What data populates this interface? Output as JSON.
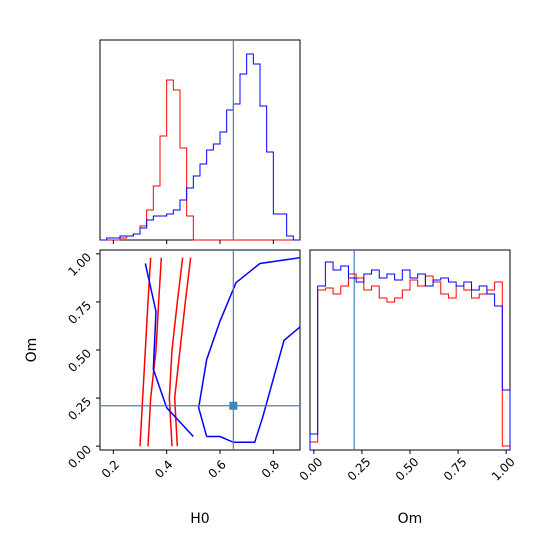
{
  "chart_data": {
    "type": "corner",
    "parameters": [
      "H0",
      "Om"
    ],
    "truth": {
      "H0": 0.65,
      "Om": 0.21
    },
    "truth_color": "#4682b4",
    "series_colors": [
      "#ff0000",
      "#0000ff"
    ],
    "panels": [
      {
        "id": "hist-h0",
        "type": "histogram",
        "param": "H0",
        "xlim": [
          0.15,
          0.9
        ],
        "ylim": [
          0,
          1.0
        ],
        "bins": [
          0.15,
          0.175,
          0.2,
          0.225,
          0.25,
          0.275,
          0.3,
          0.325,
          0.35,
          0.375,
          0.4,
          0.425,
          0.45,
          0.475,
          0.5,
          0.525,
          0.55,
          0.575,
          0.6,
          0.625,
          0.65,
          0.675,
          0.7,
          0.725,
          0.75,
          0.775,
          0.8,
          0.825,
          0.85,
          0.875,
          0.9
        ],
        "series": [
          {
            "color": "#ff0000",
            "values": [
              0,
              0,
              0,
              0.01,
              0.02,
              0.03,
              0.07,
              0.15,
              0.27,
              0.52,
              0.8,
              0.75,
              0.46,
              0.12,
              0,
              0,
              0,
              0,
              0,
              0,
              0,
              0,
              0,
              0,
              0,
              0,
              0,
              0,
              0,
              0
            ]
          },
          {
            "color": "#0000ff",
            "values": [
              0,
              0.01,
              0.01,
              0.02,
              0.02,
              0.03,
              0.06,
              0.1,
              0.12,
              0.12,
              0.13,
              0.15,
              0.2,
              0.26,
              0.32,
              0.38,
              0.45,
              0.48,
              0.54,
              0.65,
              0.68,
              0.83,
              0.93,
              0.88,
              0.67,
              0.44,
              0.13,
              0.13,
              0.02,
              0
            ]
          }
        ]
      },
      {
        "id": "contour-h0-om",
        "type": "contour",
        "x_param": "H0",
        "y_param": "Om",
        "xlim": [
          0.15,
          0.9
        ],
        "ylim": [
          -0.02,
          1.02
        ],
        "series": [
          {
            "color": "#ff0000",
            "contours": [
              [
                [
                  0.3,
                  0.0
                ],
                [
                  0.31,
                  0.25
                ],
                [
                  0.32,
                  0.5
                ],
                [
                  0.33,
                  0.75
                ],
                [
                  0.34,
                  0.98
                ]
              ],
              [
                [
                  0.33,
                  0.0
                ],
                [
                  0.34,
                  0.25
                ],
                [
                  0.36,
                  0.5
                ],
                [
                  0.37,
                  0.75
                ],
                [
                  0.38,
                  0.98
                ]
              ],
              [
                [
                  0.42,
                  0.0
                ],
                [
                  0.41,
                  0.25
                ],
                [
                  0.42,
                  0.5
                ],
                [
                  0.44,
                  0.75
                ],
                [
                  0.46,
                  0.98
                ]
              ],
              [
                [
                  0.44,
                  0.0
                ],
                [
                  0.43,
                  0.25
                ],
                [
                  0.45,
                  0.5
                ],
                [
                  0.47,
                  0.75
                ],
                [
                  0.49,
                  0.98
                ]
              ]
            ]
          },
          {
            "color": "#0000ff",
            "contours": [
              [
                [
                  0.55,
                  0.05
                ],
                [
                  0.52,
                  0.2
                ],
                [
                  0.55,
                  0.45
                ],
                [
                  0.6,
                  0.65
                ],
                [
                  0.66,
                  0.85
                ],
                [
                  0.75,
                  0.95
                ],
                [
                  0.85,
                  0.97
                ],
                [
                  0.9,
                  0.98
                ]
              ],
              [
                [
                  0.9,
                  0.62
                ],
                [
                  0.84,
                  0.55
                ],
                [
                  0.8,
                  0.35
                ],
                [
                  0.76,
                  0.15
                ],
                [
                  0.73,
                  0.02
                ],
                [
                  0.65,
                  0.02
                ],
                [
                  0.6,
                  0.05
                ],
                [
                  0.55,
                  0.05
                ]
              ],
              [
                [
                  0.32,
                  0.95
                ],
                [
                  0.36,
                  0.7
                ],
                [
                  0.35,
                  0.4
                ],
                [
                  0.4,
                  0.2
                ],
                [
                  0.5,
                  0.05
                ]
              ]
            ]
          }
        ]
      },
      {
        "id": "hist-om",
        "type": "histogram",
        "param": "Om",
        "xlim": [
          -0.02,
          1.02
        ],
        "ylim": [
          0,
          1.0
        ],
        "bins": [
          -0.02,
          0.02,
          0.06,
          0.1,
          0.14,
          0.18,
          0.22,
          0.26,
          0.3,
          0.34,
          0.38,
          0.42,
          0.46,
          0.5,
          0.54,
          0.58,
          0.62,
          0.66,
          0.7,
          0.74,
          0.78,
          0.82,
          0.86,
          0.9,
          0.94,
          0.98,
          1.02
        ],
        "series": [
          {
            "color": "#ff0000",
            "values": [
              0.04,
              0.8,
              0.81,
              0.78,
              0.82,
              0.88,
              0.86,
              0.8,
              0.82,
              0.76,
              0.74,
              0.76,
              0.8,
              0.85,
              0.82,
              0.87,
              0.84,
              0.78,
              0.76,
              0.82,
              0.8,
              0.76,
              0.78,
              0.8,
              0.84,
              0.02
            ]
          },
          {
            "color": "#0000ff",
            "values": [
              0.08,
              0.82,
              0.94,
              0.9,
              0.92,
              0.86,
              0.84,
              0.88,
              0.9,
              0.86,
              0.88,
              0.85,
              0.9,
              0.86,
              0.88,
              0.82,
              0.85,
              0.86,
              0.84,
              0.82,
              0.84,
              0.8,
              0.82,
              0.78,
              0.72,
              0.3
            ]
          }
        ]
      }
    ],
    "axes": {
      "h0_ticks": [
        "0.2",
        "0.4",
        "0.6",
        "0.8"
      ],
      "om_ticks": [
        "0.00",
        "0.25",
        "0.50",
        "0.75",
        "1.00"
      ],
      "h0_label": "H0",
      "om_label": "Om"
    }
  }
}
